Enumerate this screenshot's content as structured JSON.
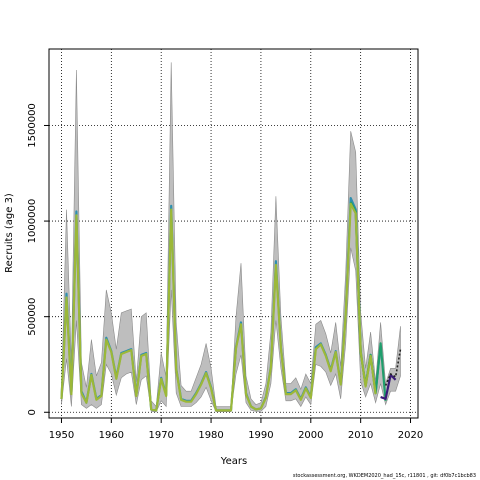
{
  "chart_data": {
    "type": "line",
    "xlabel": "Years",
    "ylabel": "Recruits (age 3)",
    "xlim": [
      1947.5,
      2021.5
    ],
    "ylim": [
      -30000,
      1900000
    ],
    "xticks": [
      1950,
      1960,
      1970,
      1980,
      1990,
      2000,
      2010,
      2020
    ],
    "yticks": [
      0,
      500000,
      1000000,
      1500000
    ],
    "grid": true,
    "band": {
      "name": "uncertainty",
      "color": "#bebebe",
      "x": [
        1950,
        1951,
        1952,
        1953,
        1954,
        1955,
        1956,
        1957,
        1958,
        1959,
        1960,
        1961,
        1962,
        1963,
        1964,
        1965,
        1966,
        1967,
        1968,
        1969,
        1970,
        1971,
        1972,
        1973,
        1974,
        1975,
        1976,
        1977,
        1978,
        1979,
        1980,
        1981,
        1982,
        1983,
        1984,
        1985,
        1986,
        1987,
        1988,
        1989,
        1990,
        1991,
        1992,
        1993,
        1994,
        1995,
        1996,
        1997,
        1998,
        1999,
        2000,
        2001,
        2002,
        2003,
        2004,
        2005,
        2006,
        2007,
        2008,
        2009,
        2010,
        2011,
        2012,
        2013,
        2014,
        2015,
        2016,
        2017,
        2018
      ],
      "upper": [
        120000,
        1060000,
        260000,
        1790000,
        260000,
        130000,
        380000,
        190000,
        260000,
        640000,
        520000,
        330000,
        520000,
        530000,
        540000,
        160000,
        500000,
        520000,
        60000,
        30000,
        310000,
        180000,
        1830000,
        470000,
        140000,
        110000,
        110000,
        180000,
        250000,
        360000,
        230000,
        30000,
        30000,
        30000,
        30000,
        500000,
        780000,
        190000,
        70000,
        40000,
        50000,
        150000,
        420000,
        1130000,
        500000,
        150000,
        150000,
        180000,
        120000,
        200000,
        150000,
        460000,
        480000,
        410000,
        310000,
        470000,
        240000,
        730000,
        1470000,
        1360000,
        520000,
        230000,
        420000,
        160000,
        470000,
        150000,
        230000,
        230000,
        450000
      ],
      "lower": [
        40000,
        280000,
        30000,
        480000,
        40000,
        20000,
        40000,
        20000,
        40000,
        250000,
        200000,
        90000,
        180000,
        200000,
        210000,
        40000,
        170000,
        190000,
        5000,
        2000,
        60000,
        30000,
        640000,
        100000,
        30000,
        30000,
        30000,
        50000,
        80000,
        130000,
        60000,
        3000,
        3000,
        3000,
        3000,
        200000,
        300000,
        50000,
        10000,
        5000,
        5000,
        30000,
        150000,
        480000,
        230000,
        60000,
        60000,
        70000,
        30000,
        80000,
        40000,
        250000,
        240000,
        210000,
        140000,
        200000,
        70000,
        360000,
        860000,
        740000,
        160000,
        80000,
        150000,
        50000,
        150000,
        40000,
        110000,
        110000,
        190000
      ]
    },
    "series": [
      {
        "name": "",
        "color": "#2f8fae",
        "x": [
          1950,
          1951,
          1952,
          1953,
          1954,
          1955,
          1956,
          1957,
          1958,
          1959,
          1960,
          1961,
          1962,
          1963,
          1964,
          1965,
          1966,
          1967,
          1968,
          1969,
          1970,
          1971,
          1972,
          1973,
          1974,
          1975,
          1976,
          1977,
          1978,
          1979,
          1980,
          1981,
          1982,
          1983,
          1984,
          1985,
          1986,
          1987,
          1988,
          1989,
          1990,
          1991,
          1992,
          1993,
          1994,
          1995,
          1996,
          1997,
          1998,
          1999,
          2000,
          2001,
          2002,
          2003,
          2004,
          2005,
          2006,
          2007,
          2008,
          2009,
          2010,
          2011,
          2012,
          2013,
          2014
        ],
        "values": [
          70000,
          620000,
          100000,
          1050000,
          110000,
          50000,
          200000,
          70000,
          90000,
          390000,
          320000,
          180000,
          310000,
          320000,
          330000,
          90000,
          300000,
          310000,
          15000,
          10000,
          180000,
          90000,
          1080000,
          230000,
          70000,
          60000,
          60000,
          100000,
          150000,
          210000,
          130000,
          10000,
          10000,
          10000,
          10000,
          340000,
          470000,
          100000,
          30000,
          15000,
          20000,
          80000,
          240000,
          790000,
          340000,
          100000,
          100000,
          120000,
          70000,
          130000,
          80000,
          340000,
          360000,
          300000,
          220000,
          320000,
          150000,
          520000,
          1120000,
          1060000,
          320000,
          140000,
          300000,
          100000,
          350000
        ]
      },
      {
        "name": "",
        "color": "#1f9e6c",
        "x": [
          2008,
          2009,
          2010,
          2011,
          2012,
          2013,
          2014,
          2015
        ],
        "values": [
          1100000,
          1050000,
          310000,
          140000,
          300000,
          100000,
          360000,
          60000
        ]
      },
      {
        "name": "",
        "color": "#3a1a78",
        "x": [
          2014,
          2015,
          2016,
          2017
        ],
        "values": [
          80000,
          70000,
          195000,
          170000
        ]
      },
      {
        "name": "",
        "color": "#222222",
        "x": [
          2015,
          2016,
          2017,
          2018
        ],
        "values": [
          140000,
          200000,
          185000,
          330000
        ],
        "dashed": true
      },
      {
        "name": "",
        "color": "#9cb838",
        "x": [
          1950,
          1951,
          1952,
          1953,
          1954,
          1955,
          1956,
          1957,
          1958,
          1959,
          1960,
          1961,
          1962,
          1963,
          1964,
          1965,
          1966,
          1967,
          1968,
          1969,
          1970,
          1971,
          1972,
          1973,
          1974,
          1975,
          1976,
          1977,
          1978,
          1979,
          1980,
          1981,
          1982,
          1983,
          1984,
          1985,
          1986,
          1987,
          1988,
          1989,
          1990,
          1991,
          1992,
          1993,
          1994,
          1995,
          1996,
          1997,
          1998,
          1999,
          2000,
          2001,
          2002,
          2003,
          2004,
          2005,
          2006,
          2007,
          2008,
          2009,
          2010,
          2011,
          2012,
          2013
        ],
        "values": [
          70000,
          600000,
          95000,
          1030000,
          100000,
          50000,
          195000,
          65000,
          85000,
          380000,
          315000,
          175000,
          305000,
          315000,
          325000,
          85000,
          295000,
          305000,
          15000,
          10000,
          175000,
          85000,
          1060000,
          225000,
          65000,
          55000,
          55000,
          95000,
          145000,
          205000,
          125000,
          10000,
          10000,
          10000,
          10000,
          335000,
          460000,
          95000,
          30000,
          15000,
          20000,
          75000,
          235000,
          770000,
          335000,
          95000,
          95000,
          115000,
          65000,
          125000,
          75000,
          330000,
          355000,
          295000,
          215000,
          315000,
          145000,
          510000,
          1090000,
          1040000,
          315000,
          135000,
          295000,
          95000
        ]
      }
    ]
  },
  "footer": "stockassessment.org, WKDEM2020_had_15c, r11801 , git: df0b7c1bcb83"
}
